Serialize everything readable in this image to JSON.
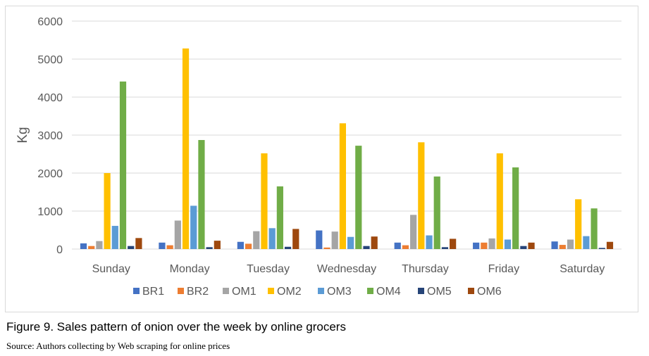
{
  "chart_data": {
    "type": "bar",
    "ylabel": "Kg",
    "ylim": [
      0,
      6000
    ],
    "yticks": [
      0,
      1000,
      2000,
      3000,
      4000,
      5000,
      6000
    ],
    "categories": [
      "Sunday",
      "Monday",
      "Tuesday",
      "Wednesday",
      "Thursday",
      "Friday",
      "Saturday"
    ],
    "legend_position": "bottom",
    "grid": true,
    "series": [
      {
        "name": "BR1",
        "color": "#4472c4",
        "values": [
          150,
          170,
          190,
          490,
          170,
          170,
          200
        ]
      },
      {
        "name": "BR2",
        "color": "#ed7d31",
        "values": [
          80,
          100,
          140,
          40,
          100,
          170,
          110
        ]
      },
      {
        "name": "OM1",
        "color": "#a5a5a5",
        "values": [
          210,
          750,
          470,
          460,
          900,
          280,
          250
        ]
      },
      {
        "name": "OM2",
        "color": "#ffc000",
        "values": [
          2000,
          5280,
          2520,
          3310,
          2810,
          2520,
          1310
        ]
      },
      {
        "name": "OM3",
        "color": "#5b9bd5",
        "values": [
          610,
          1140,
          550,
          320,
          360,
          250,
          340
        ]
      },
      {
        "name": "OM4",
        "color": "#70ad47",
        "values": [
          4410,
          2870,
          1650,
          2720,
          1910,
          2150,
          1070
        ]
      },
      {
        "name": "OM5",
        "color": "#264478",
        "values": [
          80,
          50,
          60,
          80,
          50,
          80,
          30
        ]
      },
      {
        "name": "OM6",
        "color": "#9e480e",
        "values": [
          290,
          220,
          530,
          330,
          270,
          170,
          190
        ]
      }
    ]
  },
  "caption": "Figure 9. Sales pattern of onion over the week by online grocers",
  "source": "Source: Authors collecting by Web scraping for online prices"
}
